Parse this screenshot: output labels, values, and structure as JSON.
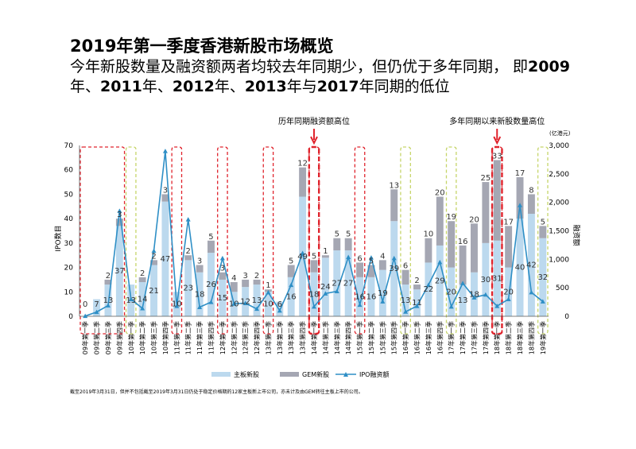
{
  "header": {
    "title": "2019年第一季度香港新股市场概览",
    "subtitle_part1": "今年新股数量及融资额两者均较去年同期少，但仍优于多年同期，  即",
    "subtitle_bold1": "2009",
    "subtitle_part2": "年、",
    "subtitle_bold2": "2011",
    "subtitle_part3": "年、",
    "subtitle_bold3": "2012",
    "subtitle_part4": "年、",
    "subtitle_bold4": "2013",
    "subtitle_part5": "年与",
    "subtitle_bold5": "2017",
    "subtitle_part6": "年同期的低位"
  },
  "annotations": {
    "highest_funds": "历年同期融资额高位",
    "highest_count": "多年同期以来新股数量高位"
  },
  "footnote": "截至2019年3月31日，但并不包括截至2019年3月31日仍处于稳定价格期的12家主板新上市公司，亦未计及由GEM转往主板上市的公司。",
  "colors": {
    "main_board": "#bcd9ee",
    "gem": "#a5a7b3",
    "ipo_funds": "#2e8fc6",
    "red_box": "#e0242d",
    "green_box": "#c6d56a",
    "arrow": "#e0242d"
  },
  "chart_data": {
    "type": "bar",
    "stacked": true,
    "categories": [
      "09年第一季",
      "09年第二季",
      "09年第三季",
      "09年第四季",
      "10年第一季",
      "10年第二季",
      "10年第三季",
      "10年第四季",
      "11年第一季",
      "11年第二季",
      "11年第三季",
      "11年第四季",
      "12年第一季",
      "12年第二季",
      "12年第三季",
      "12年第四季",
      "13年第一季",
      "13年第二季",
      "13年第三季",
      "13年第四季",
      "14年第一季",
      "14年第二季",
      "14年第三季",
      "14年第四季",
      "15年第一季",
      "15年第二季",
      "15年第三季",
      "15年第四季",
      "16年第一季",
      "16年第二季",
      "16年第三季",
      "16年第四季",
      "17年第一季",
      "17年第二季",
      "17年第三季",
      "17年第四季",
      "18年第一季",
      "18年第二季",
      "18年第三季",
      "18年第四季",
      "19年第一季"
    ],
    "series": [
      {
        "name": "主板新股",
        "axis": "left",
        "values": [
          0,
          7,
          13,
          37,
          13,
          14,
          21,
          47,
          10,
          23,
          18,
          26,
          15,
          10,
          12,
          13,
          10,
          6,
          16,
          49,
          18,
          24,
          27,
          27,
          16,
          16,
          19,
          39,
          13,
          11,
          22,
          29,
          20,
          13,
          18,
          30,
          31,
          20,
          40,
          42,
          32
        ]
      },
      {
        "name": "GEM新股",
        "axis": "left",
        "values": [
          0,
          0,
          2,
          3,
          0,
          2,
          2,
          3,
          0,
          2,
          3,
          5,
          3,
          4,
          3,
          2,
          1,
          0,
          5,
          12,
          5,
          1,
          5,
          5,
          6,
          5,
          4,
          13,
          6,
          2,
          10,
          20,
          19,
          16,
          20,
          25,
          33,
          17,
          17,
          8,
          5
        ]
      },
      {
        "name": "IPO融资额",
        "axis": "right",
        "type": "line",
        "values": [
          5,
          75,
          190,
          1850,
          300,
          140,
          1150,
          2900,
          180,
          1700,
          160,
          250,
          1020,
          220,
          230,
          130,
          420,
          100,
          550,
          1110,
          170,
          400,
          440,
          1040,
          200,
          1030,
          260,
          1020,
          80,
          180,
          550,
          950,
          170,
          580,
          330,
          380,
          180,
          300,
          1950,
          420,
          260
        ]
      }
    ],
    "left_axis": {
      "ylabel": "IPO数目",
      "ylim": [
        0,
        70
      ],
      "ticks": [
        0,
        10,
        20,
        30,
        40,
        50,
        60,
        70
      ]
    },
    "right_axis": {
      "ylabel": "融资额",
      "unit": "(亿港元)",
      "ylim": [
        0,
        3000
      ],
      "ticks": [
        "0",
        "500",
        "1,000",
        "1,500",
        "2,000",
        "2,500",
        "3,000"
      ]
    },
    "box_groups": [
      {
        "color": "red",
        "start": 0,
        "end": 3
      },
      {
        "color": "green",
        "start": 4,
        "end": 4
      },
      {
        "color": "red",
        "start": 8,
        "end": 8
      },
      {
        "color": "red",
        "start": 12,
        "end": 12
      },
      {
        "color": "red",
        "start": 16,
        "end": 16
      },
      {
        "color": "red",
        "start": 20,
        "end": 20
      },
      {
        "color": "red",
        "start": 24,
        "end": 24
      },
      {
        "color": "green",
        "start": 28,
        "end": 28
      },
      {
        "color": "green",
        "start": 32,
        "end": 32
      },
      {
        "color": "red",
        "start": 36,
        "end": 36
      },
      {
        "color": "green",
        "start": 40,
        "end": 40
      }
    ],
    "legend": [
      {
        "label": "主板新股",
        "kind": "box",
        "color": "#bcd9ee"
      },
      {
        "label": "GEM新股",
        "kind": "box",
        "color": "#a5a7b3"
      },
      {
        "label": "IPO融资额",
        "kind": "line",
        "color": "#2e8fc6"
      }
    ],
    "legend_position": "bottom",
    "grid": false
  }
}
